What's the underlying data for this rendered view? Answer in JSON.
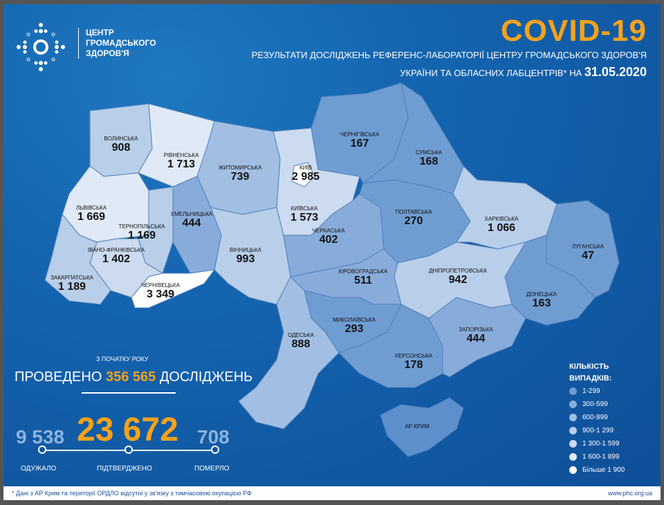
{
  "header": {
    "logo_text": [
      "ЦЕНТР",
      "ГРОМАДСЬКОГО",
      "ЗДОРОВ'Я"
    ],
    "title": "COVID-19",
    "subtitle_line1": "РЕЗУЛЬТАТИ ДОСЛІДЖЕНЬ РЕФЕРЕНС-ЛАБОРАТОРІЇ ЦЕНТРУ ГРОМАДСЬКОГО ЗДОРОВ'Я",
    "subtitle_line2": "УКРАЇНИ ТА ОБЛАСНИХ ЛАБЦЕНТРІВ* НА",
    "date": "31.05.2020"
  },
  "regions": [
    {
      "name": "ВОЛИНСЬКА",
      "value": "908"
    },
    {
      "name": "РІВНЕНСЬКА",
      "value": "1 713"
    },
    {
      "name": "ЖИТОМИРСЬКА",
      "value": "739"
    },
    {
      "name": "КИЇВ",
      "value": "2 985"
    },
    {
      "name": "КИЇВСЬКА",
      "value": "1 573"
    },
    {
      "name": "ЧЕРНІГІВСЬКА",
      "value": "167"
    },
    {
      "name": "СУМСЬКА",
      "value": "168"
    },
    {
      "name": "ЛЬВІВСЬКА",
      "value": "1 669"
    },
    {
      "name": "ТЕРНОПІЛЬСЬКА",
      "value": "1 169"
    },
    {
      "name": "ХМЕЛЬНИЦЬКА",
      "value": "444"
    },
    {
      "name": "ІВАНО-ФРАНКІВСЬКА",
      "value": "1 402"
    },
    {
      "name": "ЗАКАРПАТСЬКА",
      "value": "1 189"
    },
    {
      "name": "ЧЕРНІВЕЦЬКА",
      "value": "3 349"
    },
    {
      "name": "ВІННИЦЬКА",
      "value": "993"
    },
    {
      "name": "ЧЕРКАСЬКА",
      "value": "402"
    },
    {
      "name": "ПОЛТАВСЬКА",
      "value": "270"
    },
    {
      "name": "ХАРКІВСЬКА",
      "value": "1 066"
    },
    {
      "name": "ЛУГАНСЬКА",
      "value": "47"
    },
    {
      "name": "ДОНЕЦЬКА",
      "value": "163"
    },
    {
      "name": "ДНІПРОПЕТРОВСЬКА",
      "value": "942"
    },
    {
      "name": "КІРОВОГРАДСЬКА",
      "value": "511"
    },
    {
      "name": "МИКОЛАЇВСЬКА",
      "value": "293"
    },
    {
      "name": "ОДЕСЬКА",
      "value": "888"
    },
    {
      "name": "ХЕРСОНСЬКА",
      "value": "178"
    },
    {
      "name": "ЗАПОРІЗЬКА",
      "value": "444"
    },
    {
      "name": "АР КРИМ",
      "value": ""
    }
  ],
  "tests": {
    "caption": "З ПОЧАТКУ РОКУ",
    "prefix": "ПРОВЕДЕНО",
    "count": "356 565",
    "suffix": "ДОСЛІДЖЕНЬ"
  },
  "stats": {
    "recovered": "9 538",
    "recovered_label": "ОДУЖАЛО",
    "confirmed": "23 672",
    "confirmed_label": "ПІДТВЕРДЖЕНО",
    "deaths": "708",
    "deaths_label": "ПОМЕРЛО"
  },
  "legend": {
    "title1": "КІЛЬКІСТЬ",
    "title2": "ВИПАДКІВ:",
    "items": [
      {
        "label": "1-299",
        "color": "#6f9dd2"
      },
      {
        "label": "300-599",
        "color": "#88acda"
      },
      {
        "label": "600-899",
        "color": "#a2bfe3"
      },
      {
        "label": "900-1 299",
        "color": "#b8cee9"
      },
      {
        "label": "1 300-1 599",
        "color": "#ccdbef"
      },
      {
        "label": "1 600-1 899",
        "color": "#e0eaf6"
      },
      {
        "label": "Більше 1 900",
        "color": "#ffffff"
      }
    ]
  },
  "footer": {
    "note": "* Дані з АР Крим та території ОРДЛО відсутні у зв'язку з тимчасовою окупацією РФ",
    "url": "www.phc.org.ua"
  },
  "colors": {
    "accent": "#f7a21b",
    "background": "#1565b0"
  }
}
